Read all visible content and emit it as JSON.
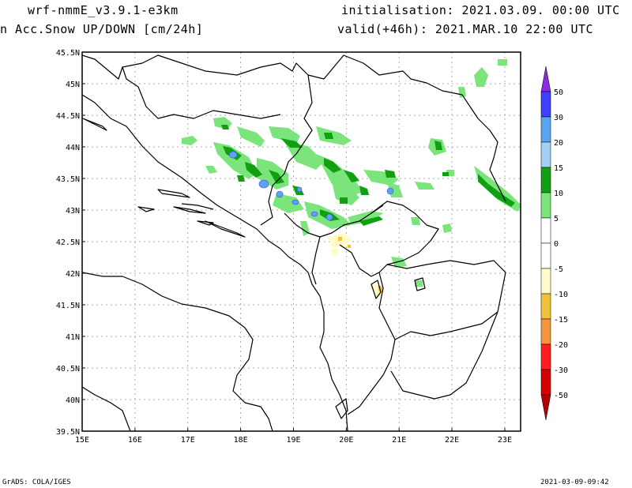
{
  "header": {
    "model": "wrf-nmmE_v3.9.1-e3km",
    "field": "n Acc.Snow UP/DOWN [cm/24h]",
    "init": "initialisation: 2021.03.09.  00:00 UTC",
    "valid": "valid(+46h): 2021.MAR.10 22:00 UTC"
  },
  "map": {
    "lon_range": [
      15,
      23.3
    ],
    "lat_range": [
      39.5,
      45.5
    ],
    "x_ticks": [
      "15E",
      "16E",
      "17E",
      "18E",
      "19E",
      "20E",
      "21E",
      "22E",
      "23E"
    ],
    "y_ticks": [
      "45.5N",
      "45N",
      "44.5N",
      "44N",
      "43.5N",
      "43N",
      "42.5N",
      "42N",
      "41.5N",
      "41N",
      "40.5N",
      "40N",
      "39.5N"
    ],
    "grid": "dotted",
    "land_color": "#ffffff",
    "border_color": "#000000"
  },
  "legend": {
    "bins": [
      {
        "label": "50",
        "color": "#8a2be2"
      },
      {
        "label": "30",
        "color": "#3f3fff"
      },
      {
        "label": "20",
        "color": "#5aa5ef"
      },
      {
        "label": "15",
        "color": "#a2d1f5"
      },
      {
        "label": "10",
        "color": "#11a011"
      },
      {
        "label": "5",
        "color": "#7be57b"
      },
      {
        "label": "0",
        "color": "#ffffff"
      },
      {
        "label": "-5",
        "color": "#ffffff"
      },
      {
        "label": "-10",
        "color": "#fffbc8"
      },
      {
        "label": "-15",
        "color": "#f0c23c"
      },
      {
        "label": "-20",
        "color": "#f5963c"
      },
      {
        "label": "-30",
        "color": "#ff1e1e"
      },
      {
        "label": "-50",
        "color": "#d70000"
      }
    ],
    "bottom_color": "#b40000"
  },
  "footer": {
    "left": "GrADS: COLA/IGES",
    "right": "2021-03-09-09:42"
  }
}
